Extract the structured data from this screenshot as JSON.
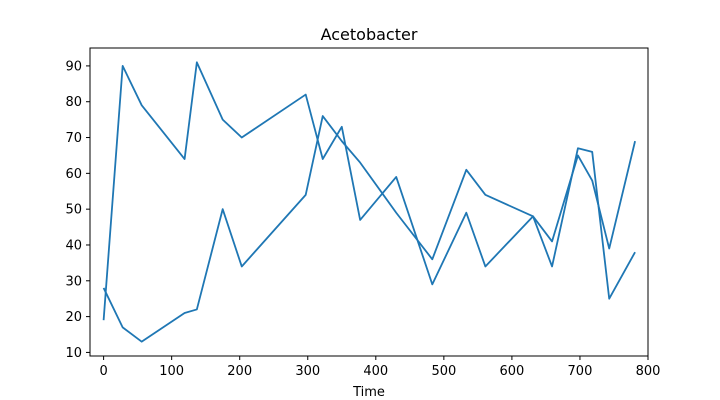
{
  "chart_data": {
    "type": "line",
    "title": "Acetobacter",
    "xlabel": "Time",
    "ylabel": "",
    "xlim": [
      -20,
      800
    ],
    "ylim": [
      9,
      95
    ],
    "xticks": [
      0,
      100,
      200,
      300,
      400,
      500,
      600,
      700,
      800
    ],
    "yticks": [
      10,
      20,
      30,
      40,
      50,
      60,
      70,
      80,
      90
    ],
    "grid": false,
    "color": "#1f77b4",
    "series": [
      {
        "x": [
          0,
          28,
          56,
          119,
          137,
          175,
          203,
          297,
          322,
          350,
          377,
          430,
          483,
          533,
          561,
          631,
          659,
          697,
          718,
          743,
          781
        ],
        "y": [
          19,
          90,
          79,
          64,
          91,
          75,
          70,
          82,
          64,
          73,
          47,
          59,
          29,
          49,
          34,
          48,
          34,
          67,
          66,
          25,
          38
        ]
      },
      {
        "x": [
          0,
          28,
          56,
          119,
          137,
          175,
          203,
          297,
          322,
          350,
          377,
          430,
          483,
          533,
          561,
          631,
          659,
          697,
          718,
          743,
          781
        ],
        "y": [
          28,
          17,
          13,
          21,
          22,
          50,
          34,
          54,
          76,
          69,
          63,
          49,
          36,
          61,
          54,
          48,
          41,
          65,
          58,
          39,
          69
        ]
      }
    ]
  }
}
